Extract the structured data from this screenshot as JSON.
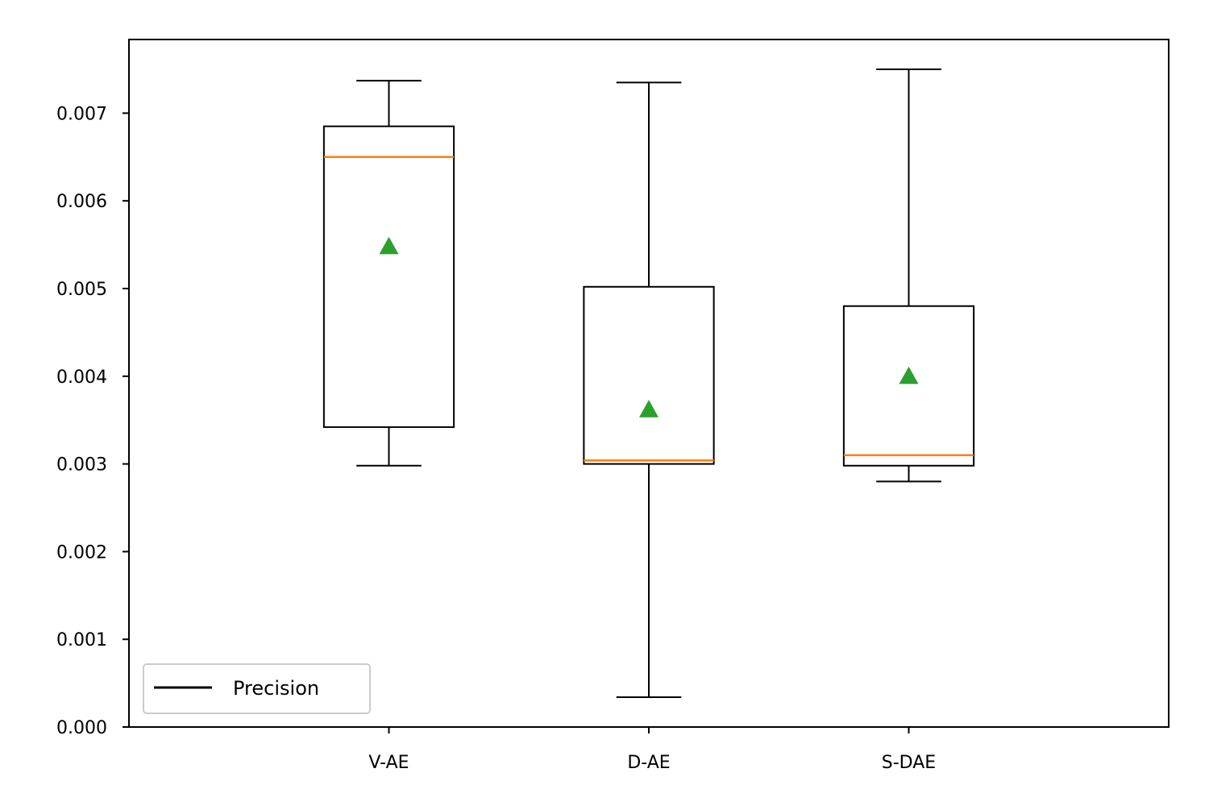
{
  "chart_data": {
    "type": "boxplot",
    "categories": [
      "V-AE",
      "D-AE",
      "S-DAE"
    ],
    "boxes": [
      {
        "category": "V-AE",
        "whisker_low": 0.00298,
        "q1": 0.00342,
        "median": 0.0065,
        "q3": 0.00685,
        "whisker_high": 0.00737,
        "mean": 0.00548
      },
      {
        "category": "D-AE",
        "whisker_low": 0.00034,
        "q1": 0.003,
        "median": 0.00304,
        "q3": 0.00502,
        "whisker_high": 0.00735,
        "mean": 0.00362
      },
      {
        "category": "S-DAE",
        "whisker_low": 0.0028,
        "q1": 0.00298,
        "median": 0.0031,
        "q3": 0.0048,
        "whisker_high": 0.0075,
        "mean": 0.004
      }
    ],
    "y_ticks": [
      0.0,
      0.001,
      0.002,
      0.003,
      0.004,
      0.005,
      0.006,
      0.007
    ],
    "y_tick_labels": [
      "0.000",
      "0.001",
      "0.002",
      "0.003",
      "0.004",
      "0.005",
      "0.006",
      "0.007"
    ],
    "ylim": [
      0.0,
      0.00784
    ],
    "xlim": [
      0,
      4
    ],
    "grid": false,
    "legend": {
      "position": "lower-left",
      "entries": [
        "Precision"
      ]
    },
    "colors": {
      "box": "#000000",
      "median": "#ff7f0e",
      "mean": "#2ca02c",
      "axes": "#000000"
    },
    "title": "",
    "xlabel": "",
    "ylabel": ""
  }
}
